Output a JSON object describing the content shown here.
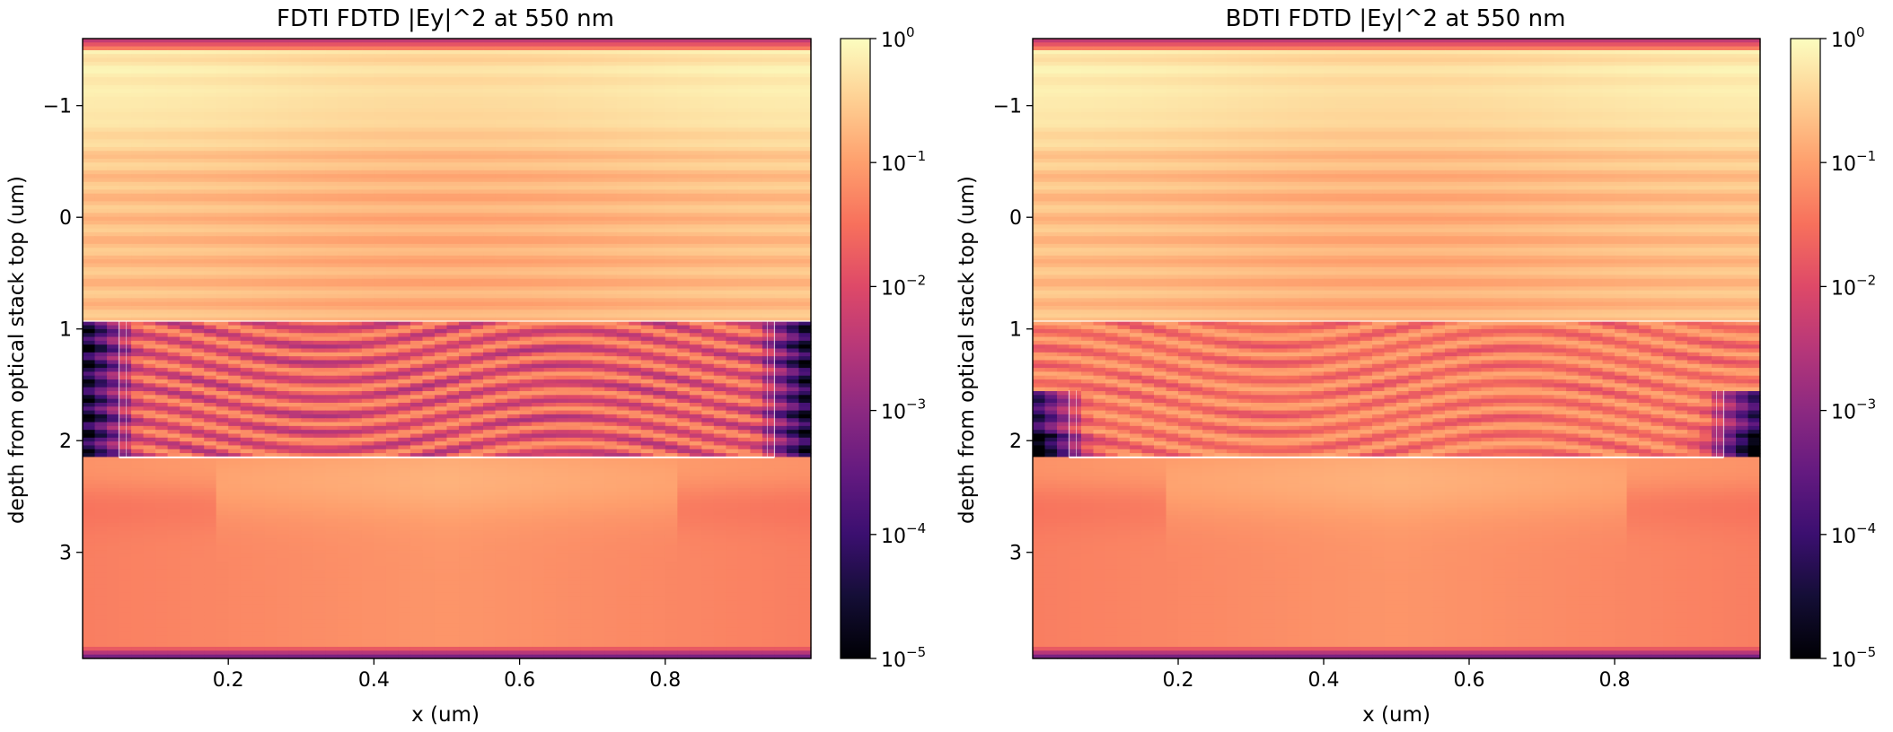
{
  "chart_data": [
    {
      "type": "heatmap",
      "title": "FDTI FDTD |Ey|^2 at 550 nm",
      "xlabel": "x (um)",
      "ylabel": "depth from optical stack top (um)",
      "xlim": [
        0.0,
        1.0
      ],
      "ylim": [
        3.95,
        -1.6
      ],
      "y_inverted": true,
      "xticks": [
        0.2,
        0.4,
        0.6,
        0.8
      ],
      "xtick_labels": [
        "0.2",
        "0.4",
        "0.6",
        "0.8"
      ],
      "yticks": [
        -1,
        0,
        1,
        2,
        3
      ],
      "ytick_labels": [
        "−1",
        "0",
        "1",
        "2",
        "3"
      ],
      "colormap": "magma",
      "colorbar": {
        "scale": "log",
        "range": [
          1e-05,
          1
        ],
        "ticks": [
          {
            "base": "10",
            "exp": "0"
          },
          {
            "base": "10",
            "exp": "−1"
          },
          {
            "base": "10",
            "exp": "−2"
          },
          {
            "base": "10",
            "exp": "−3"
          },
          {
            "base": "10",
            "exp": "−4"
          },
          {
            "base": "10",
            "exp": "−5"
          }
        ]
      },
      "structure": {
        "trench": "front-side (FDTI)",
        "interface_depth": 0.93,
        "bottom_depth": 2.15,
        "trench_top_depth": 0.93,
        "trench_x": [
          0.05,
          0.95
        ],
        "outline_color": "#ffffff"
      },
      "field_description": "bright near 1e0 above silicon, interference fringes 0.93-2.15 um with dark nulls near sidewalls, smooth 1e-1 field below, dark absorbing edges at top and bottom"
    },
    {
      "type": "heatmap",
      "title": "BDTI FDTD |Ey|^2 at 550 nm",
      "xlabel": "x (um)",
      "ylabel": "depth from optical stack top (um)",
      "xlim": [
        0.0,
        1.0
      ],
      "ylim": [
        3.95,
        -1.6
      ],
      "y_inverted": true,
      "xticks": [
        0.2,
        0.4,
        0.6,
        0.8
      ],
      "xtick_labels": [
        "0.2",
        "0.4",
        "0.6",
        "0.8"
      ],
      "yticks": [
        -1,
        0,
        1,
        2,
        3
      ],
      "ytick_labels": [
        "−1",
        "0",
        "1",
        "2",
        "3"
      ],
      "colormap": "magma",
      "colorbar": {
        "scale": "log",
        "range": [
          1e-05,
          1
        ],
        "ticks": [
          {
            "base": "10",
            "exp": "0"
          },
          {
            "base": "10",
            "exp": "−1"
          },
          {
            "base": "10",
            "exp": "−2"
          },
          {
            "base": "10",
            "exp": "−3"
          },
          {
            "base": "10",
            "exp": "−4"
          },
          {
            "base": "10",
            "exp": "−5"
          }
        ]
      },
      "structure": {
        "trench": "back-side (BDTI)",
        "interface_depth": 0.93,
        "bottom_depth": 2.15,
        "trench_top_depth": 1.55,
        "trench_x": [
          0.05,
          0.95
        ],
        "outline_color": "#ffffff"
      },
      "field_description": "bright near 1e0 above silicon, dense horizontal fringes 0.93-2.15 um, dark nulls only near lower sidewalls, smooth 1e-1 field below, dark absorbing edges at top and bottom"
    }
  ]
}
